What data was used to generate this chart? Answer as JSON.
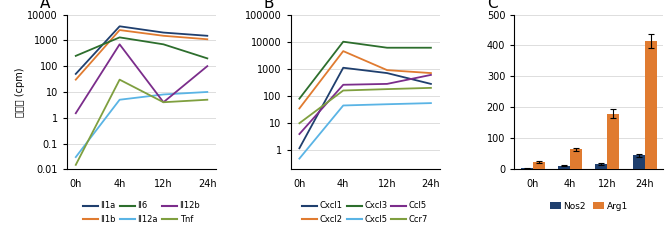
{
  "panel_A": {
    "label": "A",
    "ylabel": "発現量 (cpm)",
    "xticklabels": [
      "0h",
      "4h",
      "12h",
      "24h"
    ],
    "ylim": [
      0.01,
      10000
    ],
    "series": [
      {
        "name": "Il1a",
        "color": "#1f3f6e",
        "values": [
          50,
          3500,
          2000,
          1500
        ]
      },
      {
        "name": "Il1b",
        "color": "#e07b30",
        "values": [
          30,
          2500,
          1500,
          1100
        ]
      },
      {
        "name": "Il6",
        "color": "#2d6e2d",
        "values": [
          250,
          1300,
          700,
          200
        ]
      },
      {
        "name": "Il12a",
        "color": "#5ab4e5",
        "values": [
          0.03,
          5,
          8,
          10
        ]
      },
      {
        "name": "Il12b",
        "color": "#7b2d8b",
        "values": [
          1.5,
          700,
          4,
          100
        ]
      },
      {
        "name": "Tnf",
        "color": "#7f9f3f",
        "values": [
          0.015,
          30,
          4,
          5
        ]
      }
    ],
    "legend_order": [
      0,
      1,
      2,
      3,
      4,
      5
    ]
  },
  "panel_B": {
    "label": "B",
    "xticklabels": [
      "0h",
      "4h",
      "12h",
      "24h"
    ],
    "ylim": [
      0.2,
      100000
    ],
    "series": [
      {
        "name": "Cxcl1",
        "color": "#1f3f6e",
        "values": [
          1.2,
          1100,
          700,
          280
        ]
      },
      {
        "name": "Cxcl2",
        "color": "#e07b30",
        "values": [
          35,
          4500,
          900,
          700
        ]
      },
      {
        "name": "Cxcl3",
        "color": "#2d6e2d",
        "values": [
          80,
          10000,
          6000,
          6000
        ]
      },
      {
        "name": "Cxcl5",
        "color": "#5ab4e5",
        "values": [
          0.5,
          45,
          50,
          55
        ]
      },
      {
        "name": "Ccl5",
        "color": "#7b2d8b",
        "values": [
          4,
          260,
          280,
          600
        ]
      },
      {
        "name": "Ccr7",
        "color": "#7f9f3f",
        "values": [
          10,
          160,
          180,
          200
        ]
      }
    ]
  },
  "panel_C": {
    "label": "C",
    "xticklabels": [
      "0h",
      "4h",
      "12h",
      "24h"
    ],
    "ylim": [
      0,
      500
    ],
    "yticks": [
      0,
      100,
      200,
      300,
      400,
      500
    ],
    "bar_width": 0.32,
    "series": [
      {
        "name": "Nos2",
        "color": "#1f3f6e",
        "values": [
          3,
          12,
          18,
          45
        ],
        "errors": [
          1,
          2,
          3,
          5
        ]
      },
      {
        "name": "Arg1",
        "color": "#e07b30",
        "values": [
          25,
          65,
          180,
          415
        ],
        "errors": [
          3,
          5,
          15,
          22
        ]
      }
    ]
  }
}
